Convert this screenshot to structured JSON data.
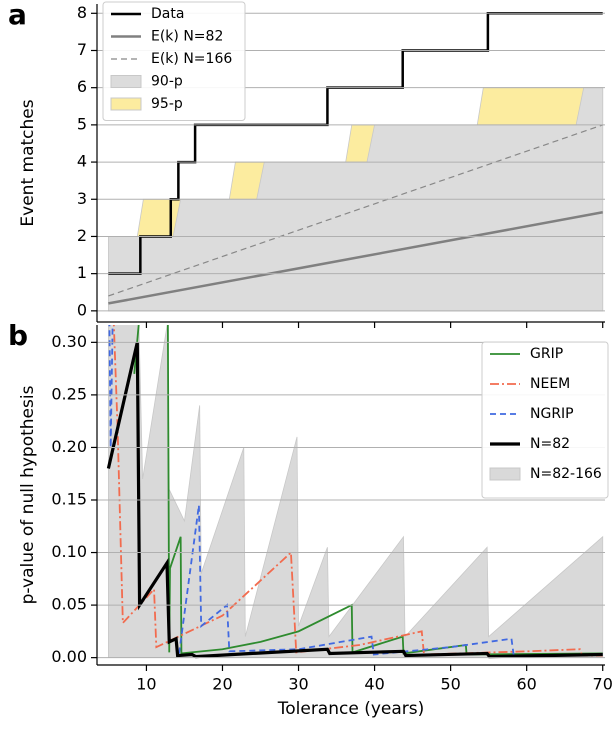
{
  "chart_data": [
    {
      "type": "line",
      "panel_label": "a",
      "ylabel": "Event matches",
      "xlim": [
        3.5,
        70.3
      ],
      "ylim": [
        -0.3,
        8.25
      ],
      "xticks": [
        10,
        20,
        30,
        40,
        50,
        60,
        70
      ],
      "yticks": [
        0,
        1,
        2,
        3,
        4,
        5,
        6,
        7,
        8
      ],
      "grid": true,
      "legend": "upper left",
      "series": [
        {
          "name": "Data",
          "plot": "line",
          "color": "#000000",
          "linewidth": 2.5,
          "dash": "solid",
          "x": [
            5,
            9.2,
            9.2,
            13.2,
            13.2,
            14.2,
            14.2,
            16.4,
            16.4,
            33.8,
            33.8,
            43.7,
            43.7,
            54.9,
            54.9,
            70
          ],
          "values": [
            1,
            1,
            2,
            2,
            3,
            3,
            4,
            4,
            5,
            5,
            6,
            6,
            7,
            7,
            8,
            8
          ]
        },
        {
          "name": "E(k) N=82",
          "plot": "line",
          "color": "#808080",
          "linewidth": 2.5,
          "dash": "solid",
          "x": [
            5,
            70
          ],
          "values": [
            0.2,
            2.65
          ]
        },
        {
          "name": "E(k) N=166",
          "plot": "line",
          "color": "#888888",
          "linewidth": 1.2,
          "dash": "dash",
          "x": [
            5,
            70
          ],
          "values": [
            0.4,
            5.0
          ]
        },
        {
          "name": "90-p",
          "plot": "fill",
          "color": "#dcdcdc",
          "x": [
            5,
            13.5,
            14.5,
            24.5,
            25.5,
            39,
            40,
            66.5,
            67.5,
            70
          ],
          "values": [
            2,
            2,
            3,
            3,
            4,
            4,
            5,
            5,
            6,
            6
          ]
        },
        {
          "name": "95-p",
          "plot": "fill",
          "color": "#fcec9f",
          "x": [
            5,
            8.8,
            9.6,
            20.9,
            21.7,
            36.2,
            37,
            53.5,
            54.3,
            70
          ],
          "values": [
            2,
            2,
            3,
            3,
            4,
            4,
            5,
            5,
            6,
            6
          ]
        }
      ]
    },
    {
      "type": "line",
      "panel_label": "b",
      "xlabel": "Tolerance (years)",
      "ylabel": "p-value of  null hypothesis",
      "xlim": [
        3.5,
        70.3
      ],
      "ylim": [
        -0.007,
        0.3165
      ],
      "xticks": [
        10,
        20,
        30,
        40,
        50,
        60,
        70
      ],
      "yticks": [
        {
          "value": 0,
          "label": "0.00"
        },
        0.05,
        {
          "value": 0.1,
          "label": "0.10"
        },
        0.15,
        {
          "value": 0.2,
          "label": "0.20"
        },
        0.25,
        {
          "value": 0.3,
          "label": "0.30"
        }
      ],
      "grid": true,
      "legend": "upper right",
      "series": [
        {
          "name": "GRIP",
          "plot": "line",
          "color": "#2e8b2e",
          "linewidth": 1.8,
          "dash": "solid",
          "x": [
            8.4,
            9.4,
            10,
            12.8,
            13.0,
            13.1,
            14.5,
            14.6,
            20,
            25,
            30,
            37,
            37.1,
            43.7,
            43.8,
            52,
            52.1,
            70
          ],
          "values": [
            0.27,
            0.35,
            null,
            0.35,
            0.005,
            0.085,
            0.115,
            0.004,
            0.008,
            0.015,
            0.025,
            0.05,
            0.005,
            0.02,
            0.004,
            0.012,
            0.003,
            0.004
          ]
        },
        {
          "name": "NEEM",
          "plot": "line",
          "color": "#f26b4e",
          "linewidth": 1.8,
          "dash": "dashdot",
          "x": [
            5.6,
            6.2,
            6.9,
            11.0,
            11.3,
            20,
            29,
            29.7,
            38,
            46.2,
            46.5,
            60,
            67,
            67.3,
            70
          ],
          "values": [
            0.34,
            0.22,
            0.033,
            0.065,
            0.01,
            0.04,
            0.1,
            0.005,
            0.012,
            0.025,
            0.003,
            0.006,
            0.008,
            0.002,
            0.002
          ]
        },
        {
          "name": "NGRIP",
          "plot": "line",
          "color": "#4169e1",
          "linewidth": 1.8,
          "dash": "dash",
          "x": [
            5.1,
            5.3,
            5.6,
            10,
            14.3,
            16.9,
            17.2,
            20.6,
            20.9,
            30,
            39.6,
            39.9,
            50,
            58,
            58.3,
            70
          ],
          "values": [
            0.34,
            0.2,
            0.34,
            null,
            0.004,
            0.145,
            0.03,
            0.05,
            0.006,
            0.008,
            0.02,
            0.003,
            0.01,
            0.018,
            0.002,
            0.003
          ]
        },
        {
          "name": "N=82",
          "plot": "line",
          "color": "#000000",
          "linewidth": 3.2,
          "dash": "solid",
          "x": [
            5,
            8.8,
            9.1,
            12.7,
            13.0,
            13.9,
            14.1,
            16,
            16.5,
            33.8,
            34.1,
            43.8,
            44.1,
            54.8,
            55.1,
            70
          ],
          "values": [
            0.18,
            0.3,
            0.05,
            0.09,
            0.015,
            0.018,
            0.002,
            0.003,
            0.001,
            0.008,
            0.004,
            0.006,
            0.002,
            0.004,
            0.001,
            0.003
          ]
        },
        {
          "name": "N=82-166",
          "plot": "fill",
          "color": "#d9d9d9",
          "x": [
            5,
            9,
            9.5,
            12.8,
            13,
            15,
            17,
            17.2,
            22.8,
            23,
            29.8,
            30,
            33.8,
            34,
            43.8,
            44,
            54.8,
            55,
            70
          ],
          "values": [
            0.32,
            0.32,
            0.17,
            0.32,
            0.16,
            0.13,
            0.24,
            0.08,
            0.2,
            0.02,
            0.21,
            0.03,
            0.105,
            0.02,
            0.115,
            0.02,
            0.105,
            0.02,
            0.115
          ]
        }
      ]
    }
  ]
}
